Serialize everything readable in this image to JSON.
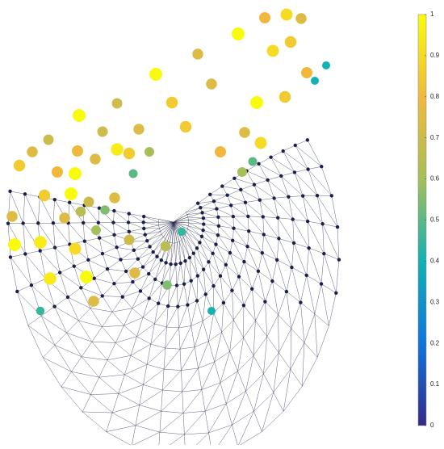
{
  "chart_data": {
    "type": "mesh",
    "colorbar": {
      "lim": [
        0,
        1
      ],
      "ticks": [
        0,
        0.1,
        0.2,
        0.3,
        0.4,
        0.5,
        0.6,
        0.7,
        0.8,
        0.9,
        1
      ],
      "colormap": [
        "#352a87",
        "#0d75dc",
        "#12b1b3",
        "#a7bf59",
        "#f0b93d",
        "#f9fb0e"
      ]
    },
    "node_values": [
      0.9,
      0.75,
      0.8,
      1,
      0.75,
      0.9,
      0.85,
      0.8,
      1,
      0.75,
      1,
      0.85,
      0.7,
      0.85,
      1,
      0.7,
      0.7,
      0.75,
      0.85,
      0.75,
      0.9,
      0.75,
      0.8,
      0.95,
      0.6,
      0.8,
      0.85,
      0.8,
      0.75,
      0.85,
      1,
      0.85,
      1,
      0.7,
      0.75,
      0.65,
      0.75,
      0.75,
      0.95,
      1,
      0.9,
      0.6,
      0.7,
      0.95,
      1,
      0.75,
      0.75,
      0.45,
      0.55,
      0.65,
      0.4,
      0.6,
      0.5,
      0.4,
      0.4,
      0.55,
      0.45,
      0.5
    ]
  }
}
